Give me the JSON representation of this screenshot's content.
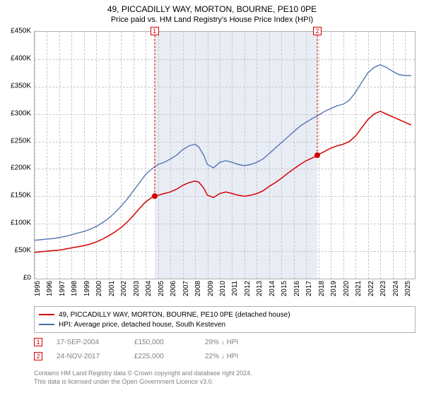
{
  "title": "49, PICCADILLY WAY, MORTON, BOURNE, PE10 0PE",
  "subtitle": "Price paid vs. HM Land Registry's House Price Index (HPI)",
  "chart": {
    "type": "line",
    "x_years": [
      1995,
      1996,
      1997,
      1998,
      1999,
      2000,
      2001,
      2002,
      2003,
      2004,
      2005,
      2006,
      2007,
      2008,
      2009,
      2010,
      2011,
      2012,
      2013,
      2014,
      2015,
      2016,
      2017,
      2018,
      2019,
      2020,
      2021,
      2022,
      2023,
      2024,
      2025
    ],
    "x_min": 1995,
    "x_max": 2025.8,
    "y_min": 0,
    "y_max": 450000,
    "y_ticks": [
      0,
      50000,
      100000,
      150000,
      200000,
      250000,
      300000,
      350000,
      400000,
      450000
    ],
    "y_tick_labels": [
      "£0",
      "£50K",
      "£100K",
      "£150K",
      "£200K",
      "£250K",
      "£300K",
      "£350K",
      "£400K",
      "£450K"
    ],
    "grid_color": "#c8c8c8",
    "background_color": "#ffffff",
    "border_color": "#b0b0b0",
    "band_color": "#e8ecf4",
    "band_start_year": 2004.71,
    "band_end_year": 2017.9,
    "series": [
      {
        "id": "property",
        "label": "49, PICCADILLY WAY, MORTON, BOURNE, PE10 0PE (detached house)",
        "color": "#d40000",
        "line_width": 1.5,
        "xy": [
          [
            1995.0,
            48000
          ],
          [
            1995.5,
            49000
          ],
          [
            1996.0,
            50000
          ],
          [
            1996.5,
            51000
          ],
          [
            1997.0,
            52000
          ],
          [
            1997.5,
            54000
          ],
          [
            1998.0,
            56000
          ],
          [
            1998.5,
            58000
          ],
          [
            1999.0,
            60000
          ],
          [
            1999.5,
            63000
          ],
          [
            2000.0,
            67000
          ],
          [
            2000.5,
            72000
          ],
          [
            2001.0,
            78000
          ],
          [
            2001.5,
            85000
          ],
          [
            2002.0,
            93000
          ],
          [
            2002.5,
            103000
          ],
          [
            2003.0,
            115000
          ],
          [
            2003.5,
            128000
          ],
          [
            2004.0,
            140000
          ],
          [
            2004.5,
            148000
          ],
          [
            2004.71,
            150000
          ],
          [
            2005.0,
            152000
          ],
          [
            2005.5,
            155000
          ],
          [
            2006.0,
            158000
          ],
          [
            2006.5,
            163000
          ],
          [
            2007.0,
            170000
          ],
          [
            2007.5,
            175000
          ],
          [
            2008.0,
            178000
          ],
          [
            2008.3,
            176000
          ],
          [
            2008.7,
            165000
          ],
          [
            2009.0,
            152000
          ],
          [
            2009.5,
            148000
          ],
          [
            2010.0,
            155000
          ],
          [
            2010.5,
            158000
          ],
          [
            2011.0,
            155000
          ],
          [
            2011.5,
            152000
          ],
          [
            2012.0,
            150000
          ],
          [
            2012.5,
            152000
          ],
          [
            2013.0,
            155000
          ],
          [
            2013.5,
            160000
          ],
          [
            2014.0,
            168000
          ],
          [
            2014.5,
            175000
          ],
          [
            2015.0,
            183000
          ],
          [
            2015.5,
            192000
          ],
          [
            2016.0,
            200000
          ],
          [
            2016.5,
            208000
          ],
          [
            2017.0,
            215000
          ],
          [
            2017.5,
            220000
          ],
          [
            2017.9,
            225000
          ],
          [
            2018.5,
            232000
          ],
          [
            2019.0,
            238000
          ],
          [
            2019.5,
            242000
          ],
          [
            2020.0,
            245000
          ],
          [
            2020.5,
            250000
          ],
          [
            2021.0,
            260000
          ],
          [
            2021.5,
            275000
          ],
          [
            2022.0,
            290000
          ],
          [
            2022.5,
            300000
          ],
          [
            2023.0,
            305000
          ],
          [
            2023.5,
            300000
          ],
          [
            2024.0,
            295000
          ],
          [
            2024.5,
            290000
          ],
          [
            2025.0,
            285000
          ],
          [
            2025.5,
            280000
          ]
        ]
      },
      {
        "id": "hpi",
        "label": "HPI: Average price, detached house, South Kesteven",
        "color": "#4a6db0",
        "line_width": 1.3,
        "xy": [
          [
            1995.0,
            70000
          ],
          [
            1995.5,
            71000
          ],
          [
            1996.0,
            72000
          ],
          [
            1996.5,
            73000
          ],
          [
            1997.0,
            75000
          ],
          [
            1997.5,
            77000
          ],
          [
            1998.0,
            80000
          ],
          [
            1998.5,
            83000
          ],
          [
            1999.0,
            86000
          ],
          [
            1999.5,
            90000
          ],
          [
            2000.0,
            95000
          ],
          [
            2000.5,
            102000
          ],
          [
            2001.0,
            110000
          ],
          [
            2001.5,
            120000
          ],
          [
            2002.0,
            132000
          ],
          [
            2002.5,
            145000
          ],
          [
            2003.0,
            160000
          ],
          [
            2003.5,
            175000
          ],
          [
            2004.0,
            190000
          ],
          [
            2004.5,
            200000
          ],
          [
            2005.0,
            208000
          ],
          [
            2005.5,
            212000
          ],
          [
            2006.0,
            218000
          ],
          [
            2006.5,
            225000
          ],
          [
            2007.0,
            235000
          ],
          [
            2007.5,
            242000
          ],
          [
            2008.0,
            245000
          ],
          [
            2008.3,
            240000
          ],
          [
            2008.7,
            225000
          ],
          [
            2009.0,
            208000
          ],
          [
            2009.5,
            202000
          ],
          [
            2010.0,
            212000
          ],
          [
            2010.5,
            215000
          ],
          [
            2011.0,
            212000
          ],
          [
            2011.5,
            208000
          ],
          [
            2012.0,
            206000
          ],
          [
            2012.5,
            208000
          ],
          [
            2013.0,
            212000
          ],
          [
            2013.5,
            218000
          ],
          [
            2014.0,
            228000
          ],
          [
            2014.5,
            238000
          ],
          [
            2015.0,
            248000
          ],
          [
            2015.5,
            258000
          ],
          [
            2016.0,
            268000
          ],
          [
            2016.5,
            278000
          ],
          [
            2017.0,
            285000
          ],
          [
            2017.5,
            292000
          ],
          [
            2018.0,
            298000
          ],
          [
            2018.5,
            305000
          ],
          [
            2019.0,
            310000
          ],
          [
            2019.5,
            315000
          ],
          [
            2020.0,
            318000
          ],
          [
            2020.5,
            325000
          ],
          [
            2021.0,
            340000
          ],
          [
            2021.5,
            358000
          ],
          [
            2022.0,
            375000
          ],
          [
            2022.5,
            385000
          ],
          [
            2023.0,
            390000
          ],
          [
            2023.5,
            385000
          ],
          [
            2024.0,
            378000
          ],
          [
            2024.5,
            372000
          ],
          [
            2025.0,
            370000
          ],
          [
            2025.5,
            370000
          ]
        ]
      }
    ]
  },
  "sales": [
    {
      "n": "1",
      "date": "17-SEP-2004",
      "price_label": "£150,000",
      "diff_label": "29% ↓ HPI",
      "year": 2004.71,
      "price": 150000,
      "color": "#d40000"
    },
    {
      "n": "2",
      "date": "24-NOV-2017",
      "price_label": "£225,000",
      "diff_label": "22% ↓ HPI",
      "year": 2017.9,
      "price": 225000,
      "color": "#d40000"
    }
  ],
  "footer": {
    "line1": "Contains HM Land Registry data © Crown copyright and database right 2024.",
    "line2": "This data is licensed under the Open Government Licence v3.0."
  }
}
